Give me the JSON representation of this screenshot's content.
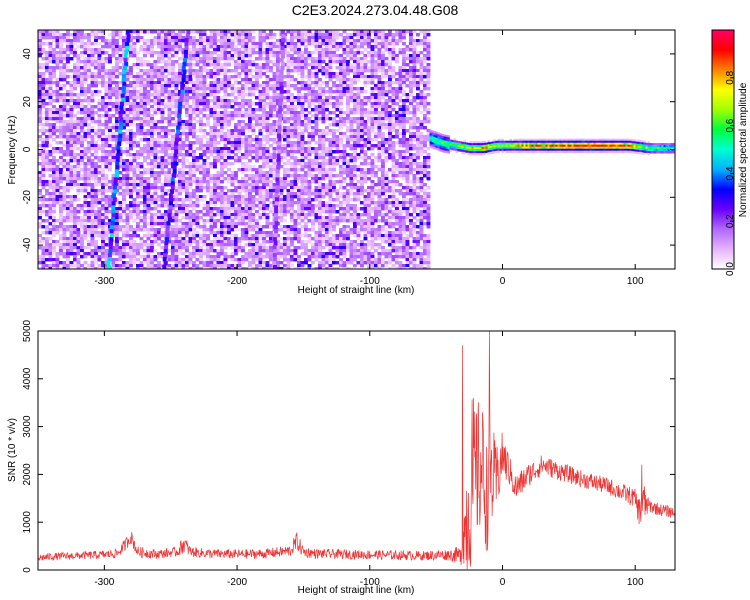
{
  "title": "C2E3.2024.273.04.48.G08",
  "chart_data": [
    {
      "type": "heatmap",
      "xlabel": "Height of straight line (km)",
      "ylabel": "Frequency (Hz)",
      "xlim": [
        -350,
        130
      ],
      "ylim": [
        -50,
        50
      ],
      "xticks": [
        -300,
        -200,
        -100,
        0,
        100
      ],
      "yticks": [
        -40,
        -20,
        0,
        20,
        40
      ],
      "grid": false,
      "colorbar": {
        "label": "Normalized spectral amplitude",
        "range": [
          0.0,
          1.0
        ],
        "ticks": [
          0.0,
          0.2,
          0.4,
          0.6,
          0.8
        ],
        "colors": [
          "#ffffff",
          "#e6b3ff",
          "#b266ff",
          "#6a00ff",
          "#0000ff",
          "#00b0ff",
          "#00ffd0",
          "#00ff40",
          "#a0ff00",
          "#ffff00",
          "#ff8000",
          "#ff0000",
          "#ff0066"
        ]
      },
      "noise_region": {
        "x": [
          -350,
          -55
        ],
        "freq": [
          -50,
          50
        ],
        "level": 0.1
      },
      "sloped_traces": [
        {
          "x_at_top": -282,
          "x_at_bottom": -297,
          "amplitude": 0.35
        },
        {
          "x_at_top": -237,
          "x_at_bottom": -255,
          "amplitude": 0.3
        },
        {
          "x_at_top": -165,
          "x_at_bottom": -172,
          "amplitude": 0.18
        }
      ],
      "carrier": {
        "x": [
          -55,
          -45,
          -35,
          -25,
          -15,
          -5,
          0,
          20,
          40,
          60,
          80,
          95,
          110,
          130
        ],
        "freq": [
          5,
          3,
          2,
          1,
          1,
          2,
          2,
          2,
          2,
          2,
          2,
          2,
          1,
          1
        ],
        "amplitude": [
          0.5,
          0.6,
          0.65,
          0.75,
          0.8,
          0.7,
          0.7,
          0.85,
          0.9,
          0.95,
          0.92,
          0.85,
          0.6,
          0.5
        ]
      }
    },
    {
      "type": "line",
      "xlabel": "Height of straight line (km)",
      "ylabel": "SNR (10 * v/v)",
      "xlim": [
        -350,
        130
      ],
      "ylim": [
        0,
        5000
      ],
      "xticks": [
        -300,
        -200,
        -100,
        0,
        100
      ],
      "yticks": [
        0,
        1000,
        2000,
        3000,
        4000,
        5000
      ],
      "color": "#ee3333",
      "series": [
        {
          "x": [
            -350,
            -340,
            -320,
            -300,
            -290,
            -285,
            -280,
            -275,
            -260,
            -245,
            -240,
            -235,
            -220,
            -200,
            -180,
            -160,
            -155,
            -150,
            -140,
            -120,
            -100,
            -80,
            -60,
            -40,
            -32,
            -28,
            -25,
            -20,
            -15,
            -12,
            -10,
            -5,
            0,
            5,
            10,
            20,
            30,
            40,
            60,
            80,
            100,
            103,
            105,
            110,
            120,
            130
          ],
          "y": [
            250,
            280,
            300,
            320,
            350,
            500,
            700,
            380,
            330,
            380,
            550,
            380,
            340,
            330,
            340,
            400,
            600,
            380,
            340,
            330,
            320,
            310,
            300,
            320,
            300,
            900,
            1500,
            2000,
            2200,
            1500,
            2100,
            1800,
            2400,
            2100,
            1700,
            2000,
            2200,
            2100,
            1900,
            1750,
            1500,
            1200,
            1400,
            1350,
            1250,
            1200
          ],
          "spread": [
            80,
            80,
            80,
            90,
            100,
            130,
            150,
            120,
            100,
            100,
            200,
            110,
            100,
            100,
            100,
            120,
            200,
            120,
            100,
            100,
            100,
            100,
            100,
            120,
            200,
            800,
            2500,
            1500,
            1500,
            1200,
            1500,
            800,
            500,
            350,
            300,
            250,
            220,
            200,
            180,
            180,
            200,
            300,
            600,
            150,
            130,
            120
          ],
          "peaks": [
            {
              "x": -30,
              "y": 4700
            },
            {
              "x": -22,
              "y": 3600
            },
            {
              "x": -15,
              "y": 3300
            },
            {
              "x": -10,
              "y": 5000
            },
            {
              "x": 105,
              "y": 2200
            }
          ]
        }
      ]
    }
  ]
}
